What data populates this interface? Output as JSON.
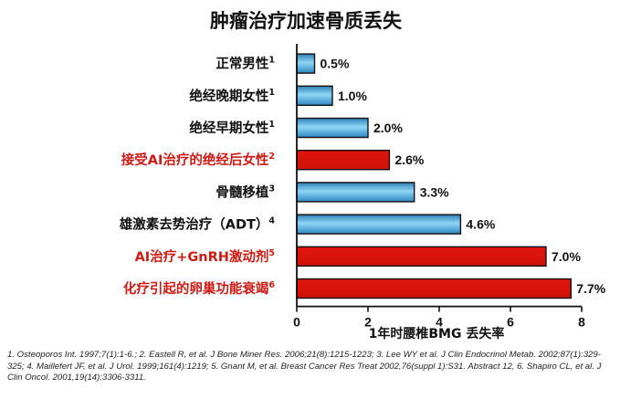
{
  "colors": {
    "blue_bar": "#36a2d6",
    "red_bar": "#e0150c",
    "highlight_text": "#cc1a14"
  },
  "chart_data": {
    "type": "bar",
    "orientation": "horizontal",
    "title": "肿瘤治疗加速骨质丢失",
    "xlabel": "1年时腰椎BMG 丢失率",
    "xlim": [
      0,
      8
    ],
    "xticks": [
      "0",
      "2",
      "4",
      "6",
      "8"
    ],
    "categories": [
      {
        "label": "正常男性",
        "sup": "1",
        "highlight": false
      },
      {
        "label": "绝经晚期女性",
        "sup": "1",
        "highlight": false
      },
      {
        "label": "绝经早期女性",
        "sup": "1",
        "highlight": false
      },
      {
        "label": "接受AI治疗的绝经后女性",
        "sup": "2",
        "highlight": true
      },
      {
        "label": "骨髓移植",
        "sup": "3",
        "highlight": false
      },
      {
        "label": "雄激素去势治疗（ADT）",
        "sup": "4",
        "highlight": false
      },
      {
        "label": "AI治疗+GnRH激动剂",
        "sup": "5",
        "highlight": true
      },
      {
        "label": "化疗引起的卵巢功能衰竭",
        "sup": "6",
        "highlight": true
      }
    ],
    "values": [
      0.5,
      1.0,
      2.0,
      2.6,
      3.3,
      4.6,
      7.0,
      7.7
    ],
    "value_labels": [
      "0.5%",
      "1.0%",
      "2.0%",
      "2.6%",
      "3.3%",
      "4.6%",
      "7.0%",
      "7.7%"
    ],
    "grid": false
  },
  "footnote": "1. Osteoporos Int. 1997;7(1):1-6.; 2. Eastell R, et al. J Bone Miner Res. 2006;21(8):1215-1223; 3. Lee WY et al. J Clin Endocrinol Metab. 2002;87(1):329-325; 4. Maillefert JF, et al. J Urol. 1999;161(4):1219; 5. Gnant M, et al. Breast Cancer Res Treat 2002,76(suppl 1):S31. Abstract 12, 6. Shapiro CL, et al. J Clin Oncol. 2001,19(14):3306-3311."
}
